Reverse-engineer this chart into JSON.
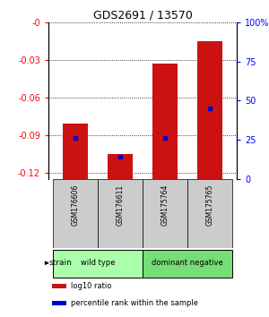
{
  "title": "GDS2691 / 13570",
  "samples": [
    "GSM176606",
    "GSM176611",
    "GSM175764",
    "GSM175765"
  ],
  "log10_ratios": [
    -0.081,
    -0.105,
    -0.033,
    -0.015
  ],
  "percentile_ranks": [
    26,
    14,
    26,
    45
  ],
  "ylim_left": [
    -0.125,
    0.0
  ],
  "ylim_right": [
    0,
    100
  ],
  "yticks_left": [
    0.0,
    -0.03,
    -0.06,
    -0.09,
    -0.12
  ],
  "yticks_right": [
    0,
    25,
    50,
    75,
    100
  ],
  "ytick_labels_left": [
    "-0",
    "-0.03",
    "-0.06",
    "-0.09",
    "-0.12"
  ],
  "ytick_labels_right": [
    "0",
    "25",
    "50",
    "75",
    "100%"
  ],
  "groups": [
    {
      "label": "wild type",
      "span": [
        0,
        1
      ],
      "color": "#aaffaa"
    },
    {
      "label": "dominant negative",
      "span": [
        2,
        3
      ],
      "color": "#77dd77"
    }
  ],
  "bar_color": "#cc1111",
  "dot_color": "#0000cc",
  "strain_label": "strain",
  "legend_items": [
    {
      "color": "#cc1111",
      "label": "log10 ratio"
    },
    {
      "color": "#0000cc",
      "label": "percentile rank within the sample"
    }
  ],
  "bar_bottom": -0.125,
  "bar_width": 0.55,
  "sample_box_color": "#cccccc"
}
